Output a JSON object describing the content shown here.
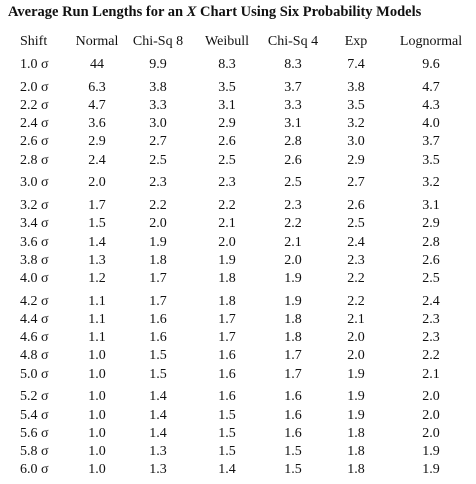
{
  "title": {
    "before": "Average Run Lengths for an ",
    "italic": "X",
    "after": " Chart Using Six Probability Models"
  },
  "table": {
    "header": [
      "Shift",
      "Normal",
      "Chi-Sq 8",
      "Weibull",
      "Chi-Sq 4",
      "Exp",
      "Lognormal"
    ],
    "groups": [
      {
        "rows": [
          [
            "1.0 σ",
            "44",
            "9.9",
            "8.3",
            "8.3",
            "7.4",
            "9.6"
          ]
        ]
      },
      {
        "rows": [
          [
            "2.0 σ",
            "6.3",
            "3.8",
            "3.5",
            "3.7",
            "3.8",
            "4.7"
          ],
          [
            "2.2 σ",
            "4.7",
            "3.3",
            "3.1",
            "3.3",
            "3.5",
            "4.3"
          ],
          [
            "2.4 σ",
            "3.6",
            "3.0",
            "2.9",
            "3.1",
            "3.2",
            "4.0"
          ],
          [
            "2.6 σ",
            "2.9",
            "2.7",
            "2.6",
            "2.8",
            "3.0",
            "3.7"
          ],
          [
            "2.8 σ",
            "2.4",
            "2.5",
            "2.5",
            "2.6",
            "2.9",
            "3.5"
          ]
        ]
      },
      {
        "rows": [
          [
            "3.0 σ",
            "2.0",
            "2.3",
            "2.3",
            "2.5",
            "2.7",
            "3.2"
          ]
        ]
      },
      {
        "rows": [
          [
            "3.2 σ",
            "1.7",
            "2.2",
            "2.2",
            "2.3",
            "2.6",
            "3.1"
          ],
          [
            "3.4 σ",
            "1.5",
            "2.0",
            "2.1",
            "2.2",
            "2.5",
            "2.9"
          ],
          [
            "3.6 σ",
            "1.4",
            "1.9",
            "2.0",
            "2.1",
            "2.4",
            "2.8"
          ],
          [
            "3.8 σ",
            "1.3",
            "1.8",
            "1.9",
            "2.0",
            "2.3",
            "2.6"
          ],
          [
            "4.0 σ",
            "1.2",
            "1.7",
            "1.8",
            "1.9",
            "2.2",
            "2.5"
          ]
        ]
      },
      {
        "rows": [
          [
            "4.2 σ",
            "1.1",
            "1.7",
            "1.8",
            "1.9",
            "2.2",
            "2.4"
          ],
          [
            "4.4 σ",
            "1.1",
            "1.6",
            "1.7",
            "1.8",
            "2.1",
            "2.3"
          ],
          [
            "4.6 σ",
            "1.1",
            "1.6",
            "1.7",
            "1.8",
            "2.0",
            "2.3"
          ],
          [
            "4.8 σ",
            "1.0",
            "1.5",
            "1.6",
            "1.7",
            "2.0",
            "2.2"
          ],
          [
            "5.0 σ",
            "1.0",
            "1.5",
            "1.6",
            "1.7",
            "1.9",
            "2.1"
          ]
        ]
      },
      {
        "rows": [
          [
            "5.2 σ",
            "1.0",
            "1.4",
            "1.6",
            "1.6",
            "1.9",
            "2.0"
          ],
          [
            "5.4 σ",
            "1.0",
            "1.4",
            "1.5",
            "1.6",
            "1.9",
            "2.0"
          ],
          [
            "5.6 σ",
            "1.0",
            "1.4",
            "1.5",
            "1.6",
            "1.8",
            "2.0"
          ],
          [
            "5.8 σ",
            "1.0",
            "1.3",
            "1.5",
            "1.5",
            "1.8",
            "1.9"
          ],
          [
            "6.0 σ",
            "1.0",
            "1.3",
            "1.4",
            "1.5",
            "1.8",
            "1.9"
          ]
        ]
      }
    ]
  }
}
